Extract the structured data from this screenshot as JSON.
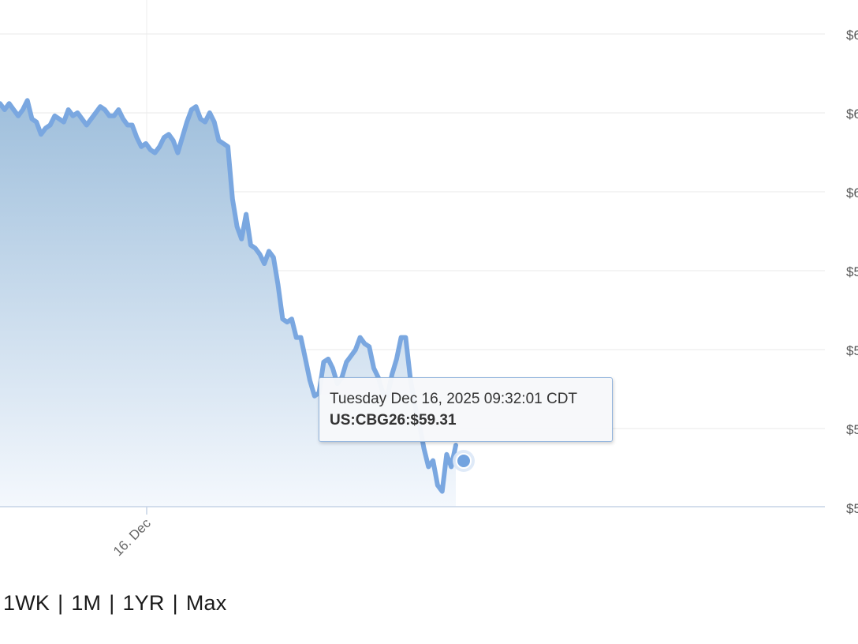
{
  "chart_data": {
    "type": "area",
    "title": "",
    "xlabel": "",
    "ylabel": "",
    "x_tick_labels": [
      "16. Dec"
    ],
    "y_tick_labels_visible": [
      "$6",
      "$6",
      "$6",
      "$5",
      "$5",
      "$5",
      "$5"
    ],
    "grid": true,
    "series": [
      {
        "values": [
          0.08,
          0.1,
          0.08,
          0.1,
          0.12,
          0.1,
          0.07,
          0.13,
          0.14,
          0.18,
          0.16,
          0.15,
          0.12,
          0.13,
          0.14,
          0.1,
          0.12,
          0.11,
          0.13,
          0.15,
          0.13,
          0.11,
          0.09,
          0.1,
          0.12,
          0.12,
          0.1,
          0.13,
          0.15,
          0.15,
          0.19,
          0.22,
          0.21,
          0.23,
          0.24,
          0.22,
          0.19,
          0.18,
          0.2,
          0.24,
          0.19,
          0.14,
          0.1,
          0.09,
          0.13,
          0.14,
          0.11,
          0.14,
          0.2,
          0.21,
          0.22,
          0.39,
          0.48,
          0.52,
          0.44,
          0.54,
          0.55,
          0.57,
          0.6,
          0.56,
          0.58,
          0.67,
          0.78,
          0.79,
          0.78,
          0.84,
          0.84,
          0.91,
          0.98,
          1.03,
          1.02,
          0.92,
          0.91,
          0.94,
          0.99,
          0.97,
          0.92,
          0.9,
          0.88,
          0.84,
          0.86,
          0.87,
          0.94,
          0.97,
          1.02,
          1.03,
          0.96,
          0.91,
          0.84,
          0.84,
          0.97,
          1.06,
          1.12,
          1.2,
          1.26,
          1.24,
          1.32,
          1.34,
          1.22,
          1.26,
          1.19
        ]
      }
    ],
    "tooltip": {
      "datetime": "Tuesday Dec 16, 2025 09:32:01 CDT",
      "symbol": "US:CBG26",
      "value": "$59.31"
    },
    "colors": {
      "line": "#7aa7e0",
      "area_top": "#9fbfdc",
      "area_bottom": "#f4f8fd",
      "grid": "#e8e8e8",
      "axis": "#c5d3e6",
      "marker": "#72a3df"
    }
  },
  "range_selector": {
    "options": [
      "1WK",
      "1M",
      "1YR",
      "Max"
    ],
    "separator": "|"
  }
}
